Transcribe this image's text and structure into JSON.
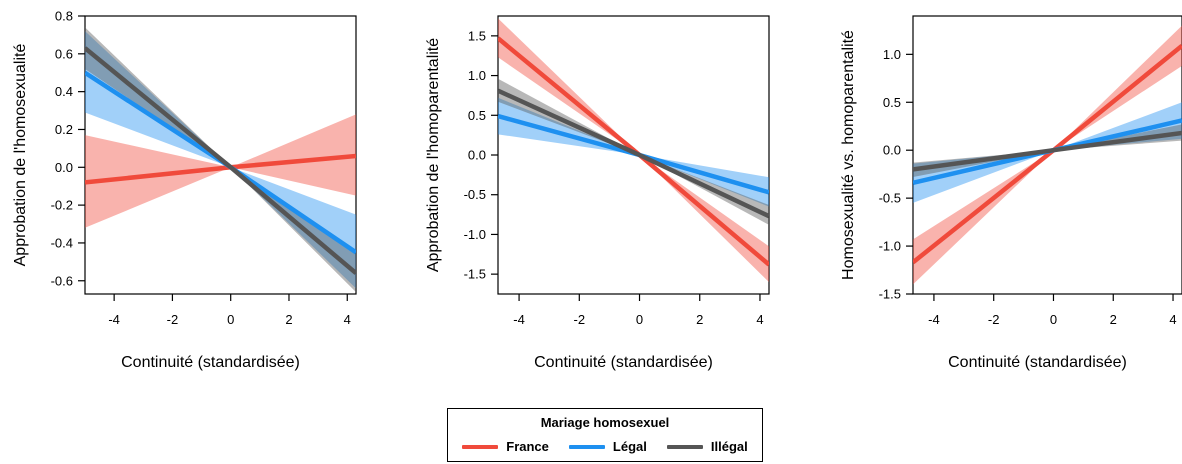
{
  "colors": {
    "France": "#f04a3b",
    "Légal": "#1e90f0",
    "Illégal": "#555555"
  },
  "legend": {
    "title": "Mariage homosexuel",
    "placement": "bottom-center",
    "items": [
      {
        "label": "France",
        "color": "#f04a3b"
      },
      {
        "label": "Légal",
        "color": "#1e90f0"
      },
      {
        "label": "Illégal",
        "color": "#555555"
      }
    ]
  },
  "chart_data": [
    {
      "type": "line",
      "xlabel": "Continuité (standardisée)",
      "ylabel": "Approbation de l'homosexualité",
      "xlim": [
        -5.0,
        4.3
      ],
      "ylim": [
        -0.67,
        0.8
      ],
      "xticks": [
        -4,
        -2,
        0,
        2,
        4
      ],
      "xtick_labels": [
        "-4",
        "-2",
        "0",
        "2",
        "4"
      ],
      "yticks": [
        -0.6,
        -0.4,
        -0.2,
        0.0,
        0.2,
        0.4,
        0.6,
        0.8
      ],
      "ytick_labels": [
        "-0.6",
        "-0.4",
        "-0.2",
        "0.0",
        "0.2",
        "0.4",
        "0.6",
        "0.8"
      ],
      "series": [
        {
          "name": "France",
          "x": [
            -5.0,
            0,
            4.3
          ],
          "y": [
            -0.08,
            0.0,
            0.06
          ],
          "lower": [
            -0.32,
            0.0,
            -0.15
          ],
          "upper": [
            0.17,
            0.0,
            0.28
          ]
        },
        {
          "name": "Légal",
          "x": [
            -5.0,
            0,
            4.3
          ],
          "y": [
            0.5,
            0.0,
            -0.45
          ],
          "lower": [
            0.29,
            0.0,
            -0.64
          ],
          "upper": [
            0.72,
            0.0,
            -0.25
          ]
        },
        {
          "name": "Illégal",
          "x": [
            -5.0,
            0,
            4.3
          ],
          "y": [
            0.63,
            0.0,
            -0.56
          ],
          "lower": [
            0.52,
            0.0,
            -0.66
          ],
          "upper": [
            0.74,
            0.0,
            -0.45
          ]
        }
      ]
    },
    {
      "type": "line",
      "xlabel": "Continuité (standardisée)",
      "ylabel": "Approbation de l'homoparentalité",
      "xlim": [
        -4.7,
        4.3
      ],
      "ylim": [
        -1.75,
        1.75
      ],
      "xticks": [
        -4,
        -2,
        0,
        2,
        4
      ],
      "xtick_labels": [
        "-4",
        "-2",
        "0",
        "2",
        "4"
      ],
      "yticks": [
        -1.5,
        -1.0,
        -0.5,
        0.0,
        0.5,
        1.0,
        1.5
      ],
      "ytick_labels": [
        "-1.5",
        "-1.0",
        "-0.5",
        "0.0",
        "0.5",
        "1.0",
        "1.5"
      ],
      "series": [
        {
          "name": "France",
          "x": [
            -4.7,
            0,
            4.3
          ],
          "y": [
            1.47,
            0.0,
            -1.38
          ],
          "lower": [
            1.23,
            0.0,
            -1.6
          ],
          "upper": [
            1.72,
            0.0,
            -1.15
          ]
        },
        {
          "name": "Légal",
          "x": [
            -4.7,
            0,
            4.3
          ],
          "y": [
            0.49,
            0.0,
            -0.47
          ],
          "lower": [
            0.26,
            0.0,
            -0.65
          ],
          "upper": [
            0.72,
            0.0,
            -0.28
          ]
        },
        {
          "name": "Illégal",
          "x": [
            -4.7,
            0,
            4.3
          ],
          "y": [
            0.81,
            0.0,
            -0.77
          ],
          "lower": [
            0.67,
            0.0,
            -0.88
          ],
          "upper": [
            0.96,
            0.0,
            -0.63
          ]
        }
      ]
    },
    {
      "type": "line",
      "xlabel": "Continuité (standardisée)",
      "ylabel": "Homosexualité vs. homoparentalité",
      "xlim": [
        -4.7,
        4.3
      ],
      "ylim": [
        -1.5,
        1.4
      ],
      "xticks": [
        -4,
        -2,
        0,
        2,
        4
      ],
      "xtick_labels": [
        "-4",
        "-2",
        "0",
        "2",
        "4"
      ],
      "yticks": [
        -1.5,
        -1.0,
        -0.5,
        0.0,
        0.5,
        1.0
      ],
      "ytick_labels": [
        "-1.5",
        "-1.0",
        "-0.5",
        "0.0",
        "0.5",
        "1.0"
      ],
      "series": [
        {
          "name": "France",
          "x": [
            -4.7,
            0,
            4.3
          ],
          "y": [
            -1.17,
            0.0,
            1.09
          ],
          "lower": [
            -1.4,
            0.0,
            0.88
          ],
          "upper": [
            -0.93,
            0.0,
            1.3
          ]
        },
        {
          "name": "Légal",
          "x": [
            -4.7,
            0,
            4.3
          ],
          "y": [
            -0.34,
            0.0,
            0.31
          ],
          "lower": [
            -0.55,
            0.0,
            0.12
          ],
          "upper": [
            -0.14,
            0.0,
            0.5
          ]
        },
        {
          "name": "Illégal",
          "x": [
            -4.7,
            0,
            4.3
          ],
          "y": [
            -0.2,
            0.0,
            0.18
          ],
          "lower": [
            -0.28,
            0.0,
            0.1
          ],
          "upper": [
            -0.13,
            0.0,
            0.27
          ]
        }
      ]
    }
  ]
}
